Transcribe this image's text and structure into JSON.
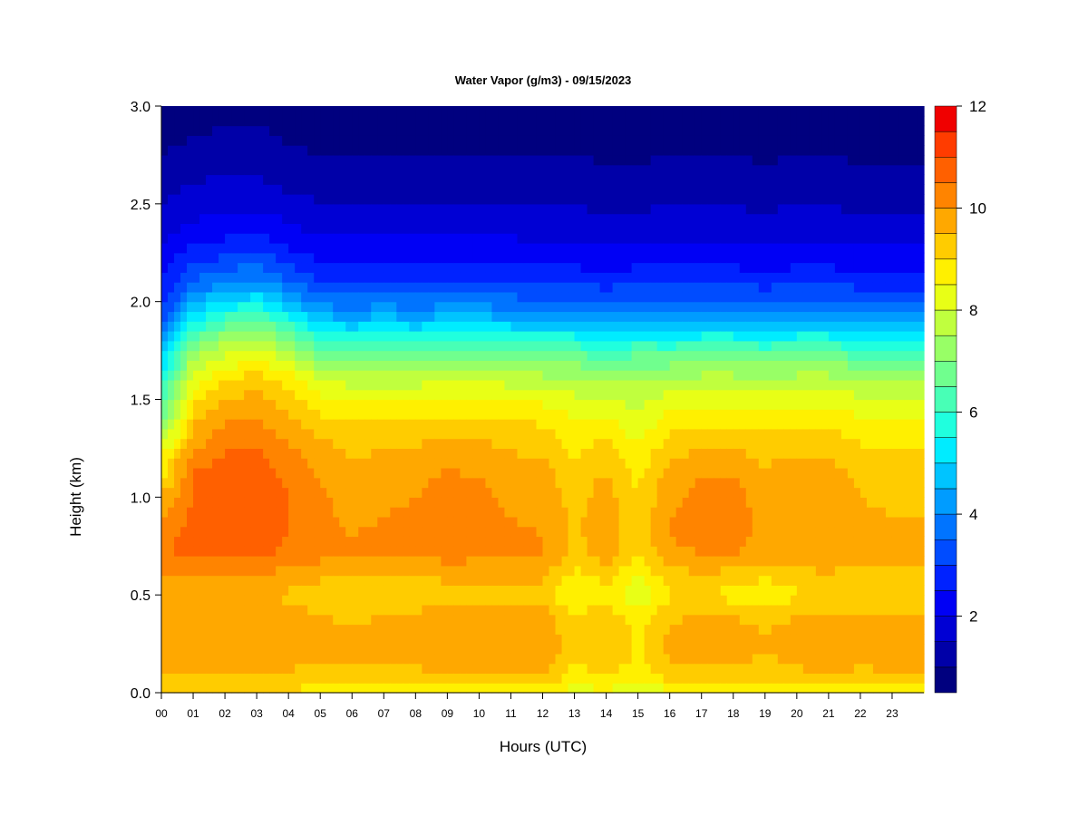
{
  "chart_data": {
    "type": "heatmap",
    "title": "Water Vapor (g/m3) - 09/15/2023",
    "xlabel": "Hours (UTC)",
    "ylabel": "Height (km)",
    "xlim": [
      0,
      24
    ],
    "ylim": [
      0,
      3.0
    ],
    "x_ticks": [
      0,
      1,
      2,
      3,
      4,
      5,
      6,
      7,
      8,
      9,
      10,
      11,
      12,
      13,
      14,
      15,
      16,
      17,
      18,
      19,
      20,
      21,
      22,
      23
    ],
    "x_tick_labels": [
      "00",
      "01",
      "02",
      "03",
      "04",
      "05",
      "06",
      "07",
      "08",
      "09",
      "10",
      "11",
      "12",
      "13",
      "14",
      "15",
      "16",
      "17",
      "18",
      "19",
      "20",
      "21",
      "22",
      "23"
    ],
    "y_ticks": [
      0.0,
      0.5,
      1.0,
      1.5,
      2.0,
      2.5,
      3.0
    ],
    "y_tick_labels": [
      "0.0",
      "0.5",
      "1.0",
      "1.5",
      "2.0",
      "2.5",
      "3.0"
    ],
    "colorbar": {
      "min": 0.5,
      "max": 12,
      "step": 0.5,
      "ticks": [
        2,
        4,
        6,
        8,
        10,
        12
      ],
      "tick_labels": [
        "2",
        "4",
        "6",
        "8",
        "10",
        "12"
      ],
      "colors": [
        "#00007f",
        "#0000a8",
        "#0000d4",
        "#0000f5",
        "#0022ff",
        "#004cff",
        "#0074ff",
        "#009cff",
        "#00c4ff",
        "#00ecff",
        "#20ffde",
        "#48ffb6",
        "#70ff8e",
        "#98ff66",
        "#c0ff3e",
        "#e8ff16",
        "#fff000",
        "#ffcc00",
        "#ffa800",
        "#ff8400",
        "#ff6000",
        "#ff3c00",
        "#f00000",
        "#c80000",
        "#8a0000"
      ]
    },
    "hours": [
      0,
      1,
      2,
      3,
      4,
      5,
      6,
      7,
      8,
      9,
      10,
      11,
      12,
      13,
      14,
      15,
      16,
      17,
      18,
      19,
      20,
      21,
      22,
      23,
      24
    ],
    "heights_km": [
      0.0,
      0.1,
      0.2,
      0.3,
      0.4,
      0.5,
      0.6,
      0.7,
      0.8,
      0.9,
      1.0,
      1.1,
      1.2,
      1.3,
      1.4,
      1.5,
      1.6,
      1.7,
      1.8,
      1.9,
      2.0,
      2.1,
      2.2,
      2.3,
      2.4,
      2.5,
      2.6,
      2.7,
      2.8,
      2.9,
      3.0
    ],
    "water_vapor_gm3": [
      [
        9.0,
        9.5,
        9.8,
        9.8,
        9.8,
        9.4,
        9.9,
        10.4,
        10.4,
        10.0,
        9.6,
        8.8,
        8.8,
        7.5,
        6.8,
        6.2,
        5.6,
        5.0,
        4.2,
        3.4,
        2.8,
        2.5,
        2.2,
        2.0,
        1.7,
        1.5,
        1.3,
        1.1,
        0.9,
        0.8,
        0.7
      ],
      [
        9.0,
        9.6,
        9.9,
        9.9,
        9.9,
        9.5,
        10.0,
        10.6,
        10.7,
        10.6,
        10.5,
        10.6,
        10.2,
        9.7,
        9.4,
        8.8,
        8.3,
        7.6,
        6.5,
        5.5,
        4.5,
        3.5,
        3.0,
        2.4,
        2.0,
        1.8,
        1.5,
        1.3,
        1.1,
        0.9,
        0.8
      ],
      [
        9.0,
        9.6,
        9.9,
        9.9,
        9.9,
        9.6,
        10.0,
        10.6,
        10.8,
        10.8,
        10.7,
        10.8,
        10.6,
        10.3,
        9.9,
        9.5,
        9.0,
        8.2,
        7.4,
        6.3,
        5.0,
        4.0,
        3.2,
        2.6,
        2.2,
        1.9,
        1.6,
        1.4,
        1.2,
        1.0,
        0.9
      ],
      [
        9.0,
        9.5,
        9.8,
        9.8,
        9.8,
        9.5,
        9.9,
        10.6,
        10.7,
        10.7,
        10.8,
        10.8,
        10.7,
        10.4,
        10.0,
        9.7,
        9.3,
        8.5,
        7.7,
        6.7,
        5.4,
        4.2,
        3.4,
        2.7,
        2.3,
        1.9,
        1.6,
        1.4,
        1.2,
        1.0,
        0.9
      ],
      [
        9.0,
        9.5,
        9.8,
        9.8,
        9.7,
        9.4,
        9.8,
        10.4,
        10.5,
        10.5,
        10.5,
        10.4,
        10.2,
        9.9,
        9.6,
        9.3,
        8.8,
        8.0,
        7.0,
        5.8,
        4.6,
        3.6,
        2.9,
        2.4,
        2.0,
        1.7,
        1.4,
        1.2,
        1.0,
        0.9,
        0.8
      ],
      [
        8.6,
        9.2,
        9.6,
        9.6,
        9.5,
        9.2,
        9.6,
        10.1,
        10.2,
        10.1,
        10.1,
        10.0,
        9.8,
        9.5,
        9.1,
        8.6,
        8.0,
        7.2,
        6.0,
        4.8,
        3.8,
        3.0,
        2.5,
        2.1,
        1.8,
        1.5,
        1.3,
        1.1,
        0.9,
        0.8,
        0.7
      ],
      [
        8.6,
        9.2,
        9.6,
        9.6,
        9.4,
        9.1,
        9.5,
        10.0,
        10.0,
        9.9,
        9.8,
        9.7,
        9.5,
        9.3,
        9.0,
        8.5,
        7.8,
        7.0,
        5.8,
        4.7,
        3.7,
        3.0,
        2.5,
        2.1,
        1.8,
        1.5,
        1.3,
        1.1,
        0.9,
        0.8,
        0.7
      ],
      [
        8.5,
        9.2,
        9.6,
        9.6,
        9.5,
        9.1,
        9.5,
        10.0,
        10.1,
        10.0,
        9.9,
        9.8,
        9.6,
        9.3,
        9.0,
        8.5,
        7.8,
        7.0,
        5.9,
        4.8,
        3.8,
        3.0,
        2.5,
        2.1,
        1.8,
        1.5,
        1.3,
        1.1,
        0.9,
        0.8,
        0.7
      ],
      [
        8.3,
        9.4,
        9.7,
        9.7,
        9.6,
        9.1,
        9.5,
        10.0,
        10.1,
        10.1,
        10.0,
        9.9,
        9.7,
        9.4,
        9.0,
        8.5,
        7.8,
        7.0,
        5.8,
        4.7,
        3.7,
        3.0,
        2.5,
        2.1,
        1.8,
        1.5,
        1.3,
        1.1,
        0.9,
        0.8,
        0.7
      ],
      [
        8.6,
        9.6,
        9.9,
        9.9,
        9.8,
        9.3,
        9.6,
        10.2,
        10.3,
        10.3,
        10.2,
        10.1,
        9.8,
        9.5,
        9.1,
        8.6,
        7.9,
        7.1,
        6.0,
        4.8,
        3.8,
        3.0,
        2.5,
        2.1,
        1.8,
        1.5,
        1.3,
        1.1,
        0.9,
        0.8,
        0.7
      ],
      [
        8.6,
        9.6,
        9.9,
        9.9,
        9.8,
        9.3,
        9.6,
        10.1,
        10.2,
        10.2,
        10.1,
        10.0,
        9.8,
        9.5,
        9.1,
        8.6,
        7.9,
        7.1,
        6.0,
        4.8,
        3.8,
        3.0,
        2.5,
        2.1,
        1.8,
        1.5,
        1.3,
        1.1,
        0.9,
        0.8,
        0.7
      ],
      [
        8.6,
        9.6,
        9.9,
        9.9,
        9.8,
        9.3,
        9.6,
        10.0,
        10.1,
        10.0,
        9.9,
        9.8,
        9.6,
        9.3,
        9.0,
        8.5,
        7.8,
        7.0,
        5.9,
        4.7,
        3.7,
        3.0,
        2.5,
        2.1,
        1.8,
        1.5,
        1.3,
        1.1,
        0.9,
        0.8,
        0.7
      ],
      [
        8.6,
        9.6,
        9.9,
        9.9,
        9.8,
        9.3,
        9.6,
        10.0,
        10.0,
        9.9,
        9.8,
        9.7,
        9.5,
        9.2,
        8.9,
        8.4,
        7.7,
        6.9,
        5.8,
        4.6,
        3.6,
        2.9,
        2.4,
        2.0,
        1.7,
        1.5,
        1.3,
        1.1,
        0.9,
        0.8,
        0.7
      ],
      [
        8.2,
        8.8,
        9.1,
        9.1,
        9.0,
        8.4,
        8.8,
        9.3,
        9.4,
        9.4,
        9.3,
        9.2,
        9.0,
        8.8,
        8.5,
        8.1,
        7.6,
        6.9,
        5.8,
        4.6,
        3.6,
        2.9,
        2.4,
        2.0,
        1.7,
        1.5,
        1.3,
        1.1,
        0.9,
        0.8,
        0.7
      ],
      [
        8.4,
        9.2,
        9.5,
        9.5,
        9.3,
        8.9,
        9.2,
        9.7,
        9.8,
        9.8,
        9.7,
        9.6,
        9.3,
        9.0,
        8.6,
        8.0,
        7.4,
        6.6,
        5.5,
        4.4,
        3.5,
        2.8,
        2.3,
        1.9,
        1.6,
        1.4,
        1.2,
        1.0,
        0.9,
        0.8,
        0.7
      ],
      [
        8.0,
        8.6,
        8.9,
        8.9,
        8.7,
        8.0,
        8.5,
        9.0,
        9.1,
        9.1,
        9.0,
        8.9,
        8.7,
        8.4,
        8.1,
        7.8,
        7.4,
        6.8,
        5.8,
        4.6,
        3.6,
        2.9,
        2.4,
        2.0,
        1.7,
        1.4,
        1.2,
        1.0,
        0.9,
        0.8,
        0.7
      ],
      [
        8.4,
        9.3,
        9.6,
        9.6,
        9.4,
        8.9,
        9.3,
        9.8,
        10.0,
        10.0,
        9.9,
        9.8,
        9.5,
        9.1,
        8.7,
        8.2,
        7.6,
        6.8,
        5.7,
        4.6,
        3.6,
        2.9,
        2.4,
        2.0,
        1.7,
        1.5,
        1.3,
        1.1,
        0.9,
        0.8,
        0.7
      ],
      [
        8.5,
        9.4,
        9.7,
        9.7,
        9.5,
        9.0,
        9.4,
        10.0,
        10.2,
        10.2,
        10.1,
        10.0,
        9.7,
        9.3,
        8.8,
        8.3,
        7.7,
        6.9,
        5.8,
        4.6,
        3.6,
        2.9,
        2.4,
        2.0,
        1.7,
        1.5,
        1.3,
        1.1,
        0.9,
        0.8,
        0.7
      ],
      [
        8.5,
        9.4,
        9.7,
        9.7,
        9.5,
        8.8,
        9.3,
        10.0,
        10.2,
        10.3,
        10.2,
        10.0,
        9.7,
        9.3,
        8.8,
        8.3,
        7.7,
        6.9,
        5.8,
        4.6,
        3.6,
        2.9,
        2.4,
        2.0,
        1.7,
        1.5,
        1.3,
        1.1,
        0.9,
        0.8,
        0.7
      ],
      [
        8.4,
        9.2,
        9.5,
        9.5,
        9.3,
        8.6,
        9.1,
        9.7,
        9.8,
        9.8,
        9.7,
        9.6,
        9.4,
        9.1,
        8.7,
        8.2,
        7.6,
        6.8,
        5.7,
        4.5,
        3.5,
        2.8,
        2.3,
        1.9,
        1.6,
        1.4,
        1.2,
        1.0,
        0.9,
        0.8,
        0.7
      ],
      [
        8.5,
        9.4,
        9.7,
        9.7,
        9.5,
        8.9,
        9.3,
        9.9,
        10.0,
        10.0,
        9.9,
        9.8,
        9.6,
        9.2,
        8.8,
        8.3,
        7.7,
        6.9,
        5.8,
        4.6,
        3.6,
        2.9,
        2.4,
        2.0,
        1.7,
        1.5,
        1.3,
        1.1,
        0.9,
        0.8,
        0.7
      ],
      [
        8.5,
        9.5,
        9.8,
        9.8,
        9.6,
        9.1,
        9.4,
        9.9,
        10.0,
        9.9,
        9.8,
        9.7,
        9.5,
        9.2,
        8.8,
        8.3,
        7.7,
        6.9,
        5.8,
        4.6,
        3.6,
        2.9,
        2.4,
        2.0,
        1.7,
        1.5,
        1.3,
        1.1,
        0.9,
        0.8,
        0.7
      ],
      [
        8.5,
        9.4,
        9.7,
        9.7,
        9.5,
        9.0,
        9.3,
        9.7,
        9.7,
        9.6,
        9.5,
        9.4,
        9.2,
        8.9,
        8.6,
        8.1,
        7.5,
        6.7,
        5.6,
        4.5,
        3.5,
        2.8,
        2.3,
        1.9,
        1.6,
        1.4,
        1.2,
        1.0,
        0.9,
        0.8,
        0.7
      ],
      [
        8.6,
        9.5,
        9.7,
        9.7,
        9.5,
        9.0,
        9.2,
        9.6,
        9.6,
        9.5,
        9.4,
        9.3,
        9.1,
        8.8,
        8.5,
        8.0,
        7.4,
        6.6,
        5.5,
        4.4,
        3.5,
        2.8,
        2.3,
        1.9,
        1.6,
        1.4,
        1.2,
        1.0,
        0.9,
        0.8,
        0.7
      ],
      [
        8.6,
        9.5,
        9.7,
        9.7,
        9.5,
        9.0,
        9.2,
        9.6,
        9.6,
        9.5,
        9.4,
        9.3,
        9.1,
        8.8,
        8.5,
        8.0,
        7.4,
        6.6,
        5.5,
        4.4,
        3.5,
        2.8,
        2.3,
        1.9,
        1.6,
        1.4,
        1.2,
        1.0,
        0.9,
        0.8,
        0.7
      ]
    ]
  }
}
